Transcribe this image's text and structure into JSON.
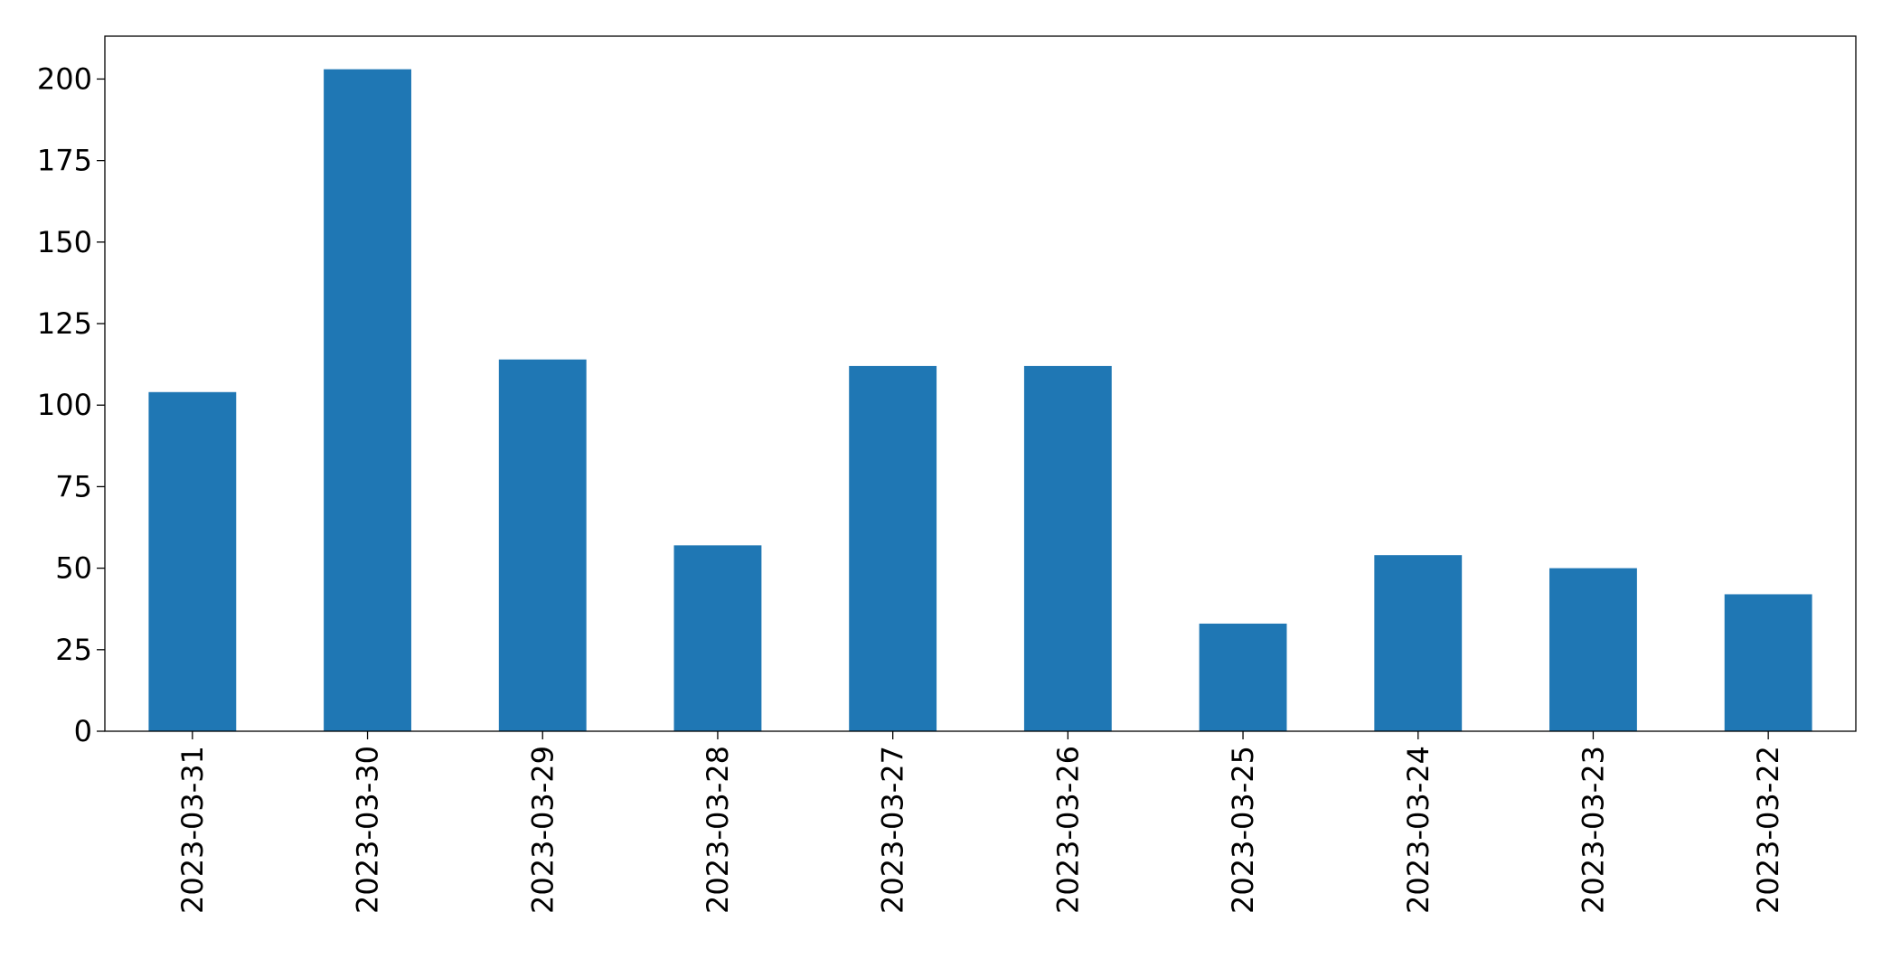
{
  "chart_data": {
    "type": "bar",
    "categories": [
      "2023-03-31",
      "2023-03-30",
      "2023-03-29",
      "2023-03-28",
      "2023-03-27",
      "2023-03-26",
      "2023-03-25",
      "2023-03-24",
      "2023-03-23",
      "2023-03-22"
    ],
    "values": [
      104,
      203,
      114,
      57,
      112,
      112,
      33,
      54,
      50,
      42
    ],
    "color": "#1f77b4",
    "ylim": [
      0,
      213.15
    ],
    "yticks": [
      0,
      25,
      50,
      75,
      100,
      125,
      150,
      175,
      200
    ],
    "grid": false
  }
}
